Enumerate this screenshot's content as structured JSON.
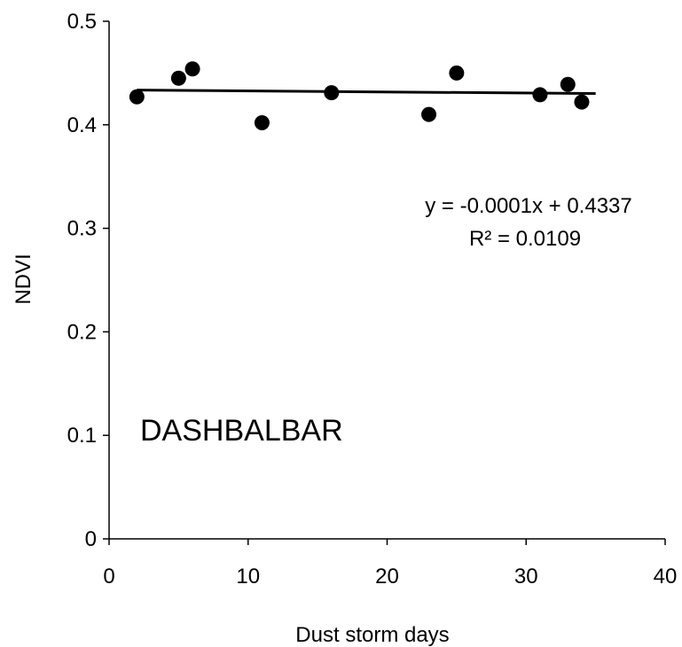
{
  "chart_data": {
    "type": "scatter",
    "title": "",
    "xlabel": "Dust storm days",
    "ylabel": "NDVI",
    "xlim": [
      0,
      40
    ],
    "ylim": [
      0,
      0.5
    ],
    "x_ticks": [
      "0",
      "10",
      "20",
      "30",
      "40"
    ],
    "y_ticks": [
      "0",
      "0.1",
      "0.2",
      "0.3",
      "0.4",
      "0.5"
    ],
    "grid": false,
    "legend": "none",
    "series": [
      {
        "x": [
          2,
          5,
          6,
          11,
          16,
          23,
          25,
          31,
          33,
          34
        ],
        "y": [
          0.427,
          0.445,
          0.454,
          0.402,
          0.431,
          0.41,
          0.45,
          0.429,
          0.439,
          0.422
        ],
        "color": "#000000"
      }
    ],
    "trendline": {
      "x_range": [
        2,
        35
      ],
      "slope": -0.0001,
      "intercept": 0.4337,
      "color": "#000000"
    },
    "annotations": {
      "equation": "y = -0.0001x + 0.4337",
      "r_squared": "R² = 0.0109",
      "station": "DASHBALBAR"
    }
  }
}
